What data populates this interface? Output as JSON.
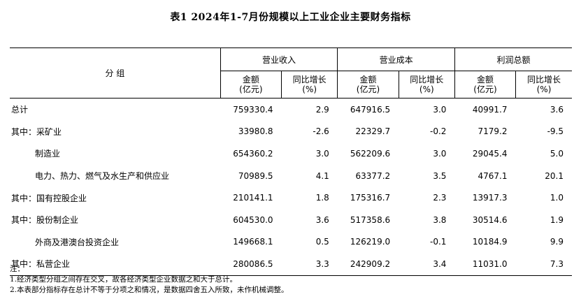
{
  "title": "表1   2024年1-7月份规模以上工业企业主要财务指标",
  "header": {
    "group": "分  组",
    "revenue": "营业收入",
    "cost": "营业成本",
    "profit": "利润总额",
    "amount_line1": "金额",
    "amount_line2": "(亿元)",
    "growth_line1": "同比增长",
    "growth_line2": "(%)"
  },
  "rows": [
    {
      "label": "总计",
      "rev": "759330.4",
      "rev_g": "2.9",
      "cost": "647916.5",
      "cost_g": "3.0",
      "profit": "40991.7",
      "profit_g": "3.6"
    },
    {
      "label": "其中：采矿业",
      "rev": "33980.8",
      "rev_g": "-2.6",
      "cost": "22329.7",
      "cost_g": "-0.2",
      "profit": "7179.2",
      "profit_g": "-9.5"
    },
    {
      "label": "制造业",
      "rev": "654360.2",
      "rev_g": "3.0",
      "cost": "562209.6",
      "cost_g": "3.0",
      "profit": "29045.4",
      "profit_g": "5.0"
    },
    {
      "label": "电力、热力、燃气及水生产和供应业",
      "rev": "70989.5",
      "rev_g": "4.1",
      "cost": "63377.2",
      "cost_g": "3.5",
      "profit": "4767.1",
      "profit_g": "20.1"
    },
    {
      "label": "其中：国有控股企业",
      "rev": "210141.1",
      "rev_g": "1.8",
      "cost": "175316.7",
      "cost_g": "2.3",
      "profit": "13917.3",
      "profit_g": "1.0"
    },
    {
      "label": "其中：股份制企业",
      "rev": "604530.0",
      "rev_g": "3.6",
      "cost": "517358.6",
      "cost_g": "3.8",
      "profit": "30514.6",
      "profit_g": "1.9"
    },
    {
      "label": "外商及港澳台投资企业",
      "rev": "149668.1",
      "rev_g": "0.5",
      "cost": "126219.0",
      "cost_g": "-0.1",
      "profit": "10184.9",
      "profit_g": "9.9"
    },
    {
      "label": "其中：私营企业",
      "rev": "280086.5",
      "rev_g": "3.3",
      "cost": "242909.2",
      "cost_g": "3.4",
      "profit": "11031.0",
      "profit_g": "7.3"
    }
  ],
  "notes": [
    "注：",
    "1.经济类型分组之间存在交叉，故各经济类型企业数据之和大于总计。",
    "2.本表部分指标存在总计不等于分项之和情况，是数据四舍五入所致，未作机械调整。"
  ]
}
